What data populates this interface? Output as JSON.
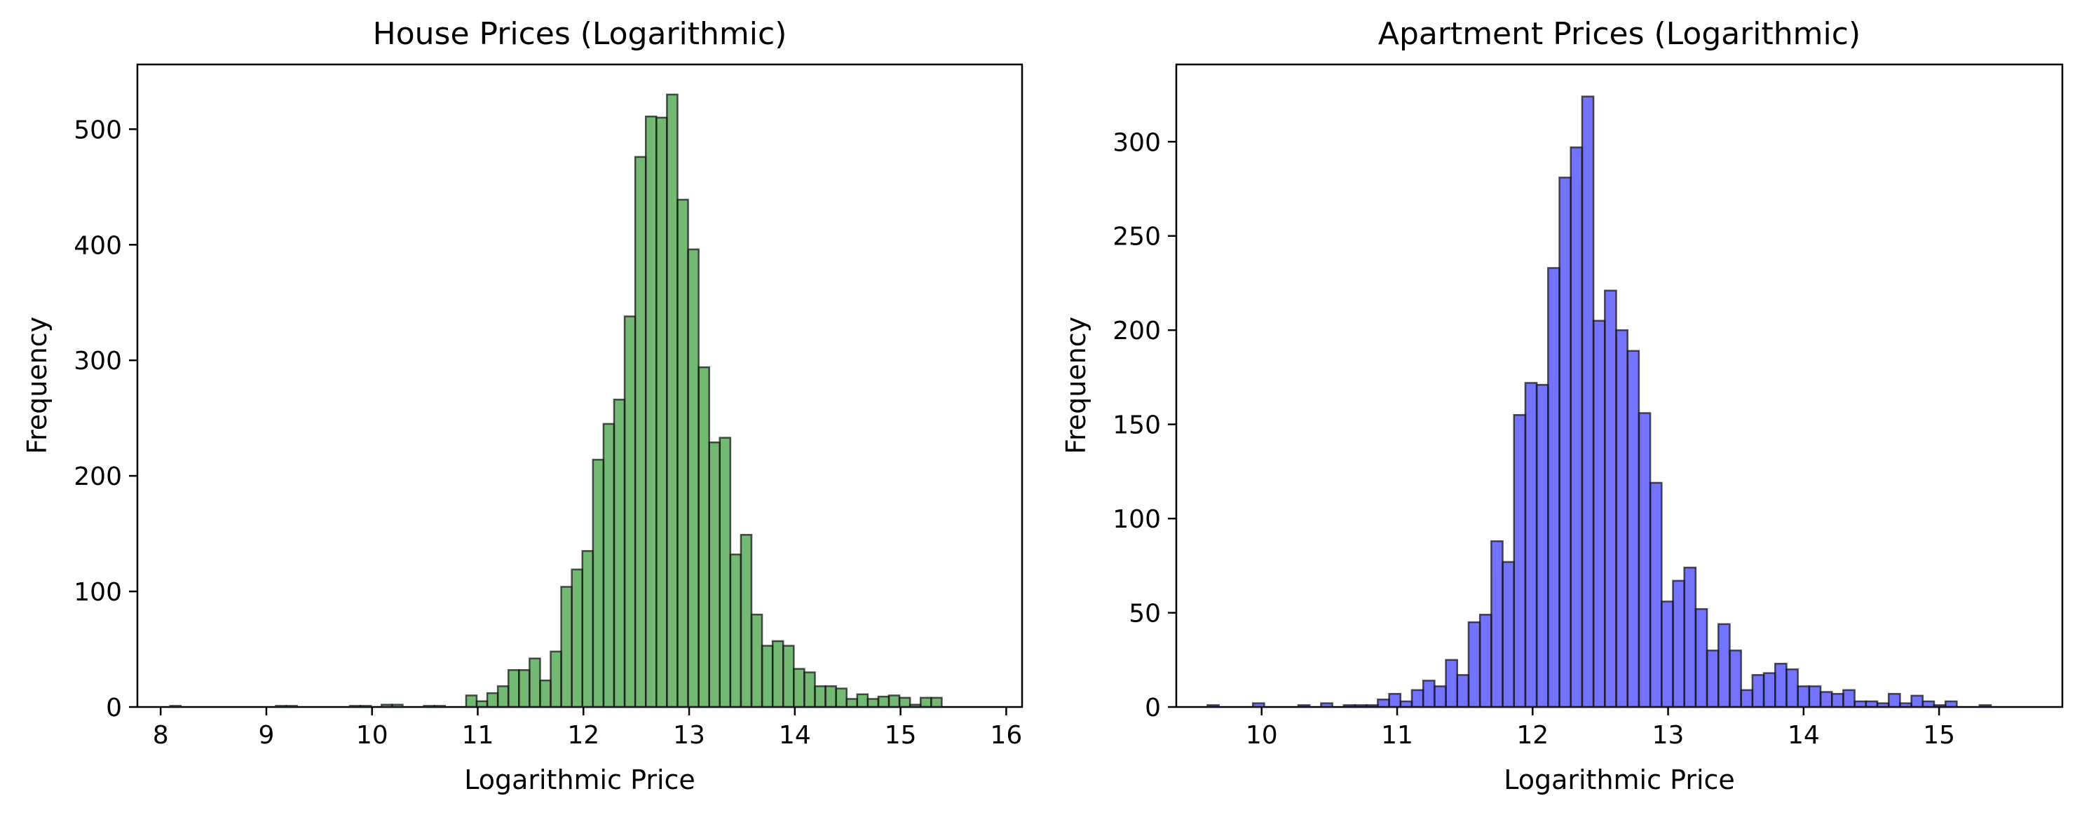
{
  "chart_data": [
    {
      "type": "bar",
      "title": "House Prices (Logarithmic)",
      "xlabel": "Logarithmic Price",
      "ylabel": "Frequency",
      "xlim": [
        7.78,
        16.15
      ],
      "ylim": [
        0,
        556
      ],
      "xticks": [
        8,
        9,
        10,
        11,
        12,
        13,
        14,
        15,
        16
      ],
      "yticks": [
        0,
        100,
        200,
        300,
        400,
        500
      ],
      "bar_color": "#008000",
      "bar_alpha": 0.55,
      "edge_color": "#1a1a1a",
      "bin_start": 8.09,
      "bin_width": 0.1,
      "counts": [
        1,
        0,
        0,
        0,
        0,
        0,
        0,
        0,
        0,
        0,
        1,
        1,
        0,
        0,
        0,
        0,
        0,
        1,
        1,
        0,
        2,
        2,
        0,
        0,
        1,
        1,
        0,
        0,
        10,
        5,
        12,
        18,
        32,
        32,
        42,
        23,
        48,
        104,
        119,
        135,
        214,
        245,
        266,
        338,
        476,
        511,
        510,
        530,
        439,
        396,
        294,
        229,
        233,
        132,
        149,
        80,
        53,
        57,
        53,
        33,
        30,
        18,
        18,
        16,
        7,
        11,
        7,
        9,
        10,
        8,
        2,
        8,
        8
      ]
    },
    {
      "type": "bar",
      "title": "Apartment Prices (Logarithmic)",
      "xlabel": "Logarithmic Price",
      "ylabel": "Frequency",
      "xlim": [
        9.37,
        15.91
      ],
      "ylim": [
        0,
        341
      ],
      "xticks": [
        10,
        11,
        12,
        13,
        14,
        15
      ],
      "yticks": [
        0,
        50,
        100,
        150,
        200,
        250,
        300
      ],
      "bar_color": "#0000ff",
      "bar_alpha": 0.55,
      "edge_color": "#1a1a1a",
      "bin_start": 9.6,
      "bin_width": 0.0838,
      "counts": [
        1,
        0,
        0,
        0,
        2,
        0,
        0,
        0,
        1,
        0,
        2,
        0,
        1,
        1,
        1,
        4,
        7,
        3,
        9,
        14,
        11,
        25,
        17,
        45,
        49,
        88,
        77,
        155,
        172,
        171,
        233,
        281,
        297,
        324,
        205,
        221,
        200,
        189,
        156,
        119,
        56,
        67,
        74,
        52,
        30,
        44,
        30,
        9,
        17,
        18,
        23,
        20,
        11,
        11,
        8,
        7,
        9,
        3,
        3,
        2,
        7,
        2,
        6,
        3,
        1,
        3,
        0,
        0,
        1
      ]
    }
  ]
}
